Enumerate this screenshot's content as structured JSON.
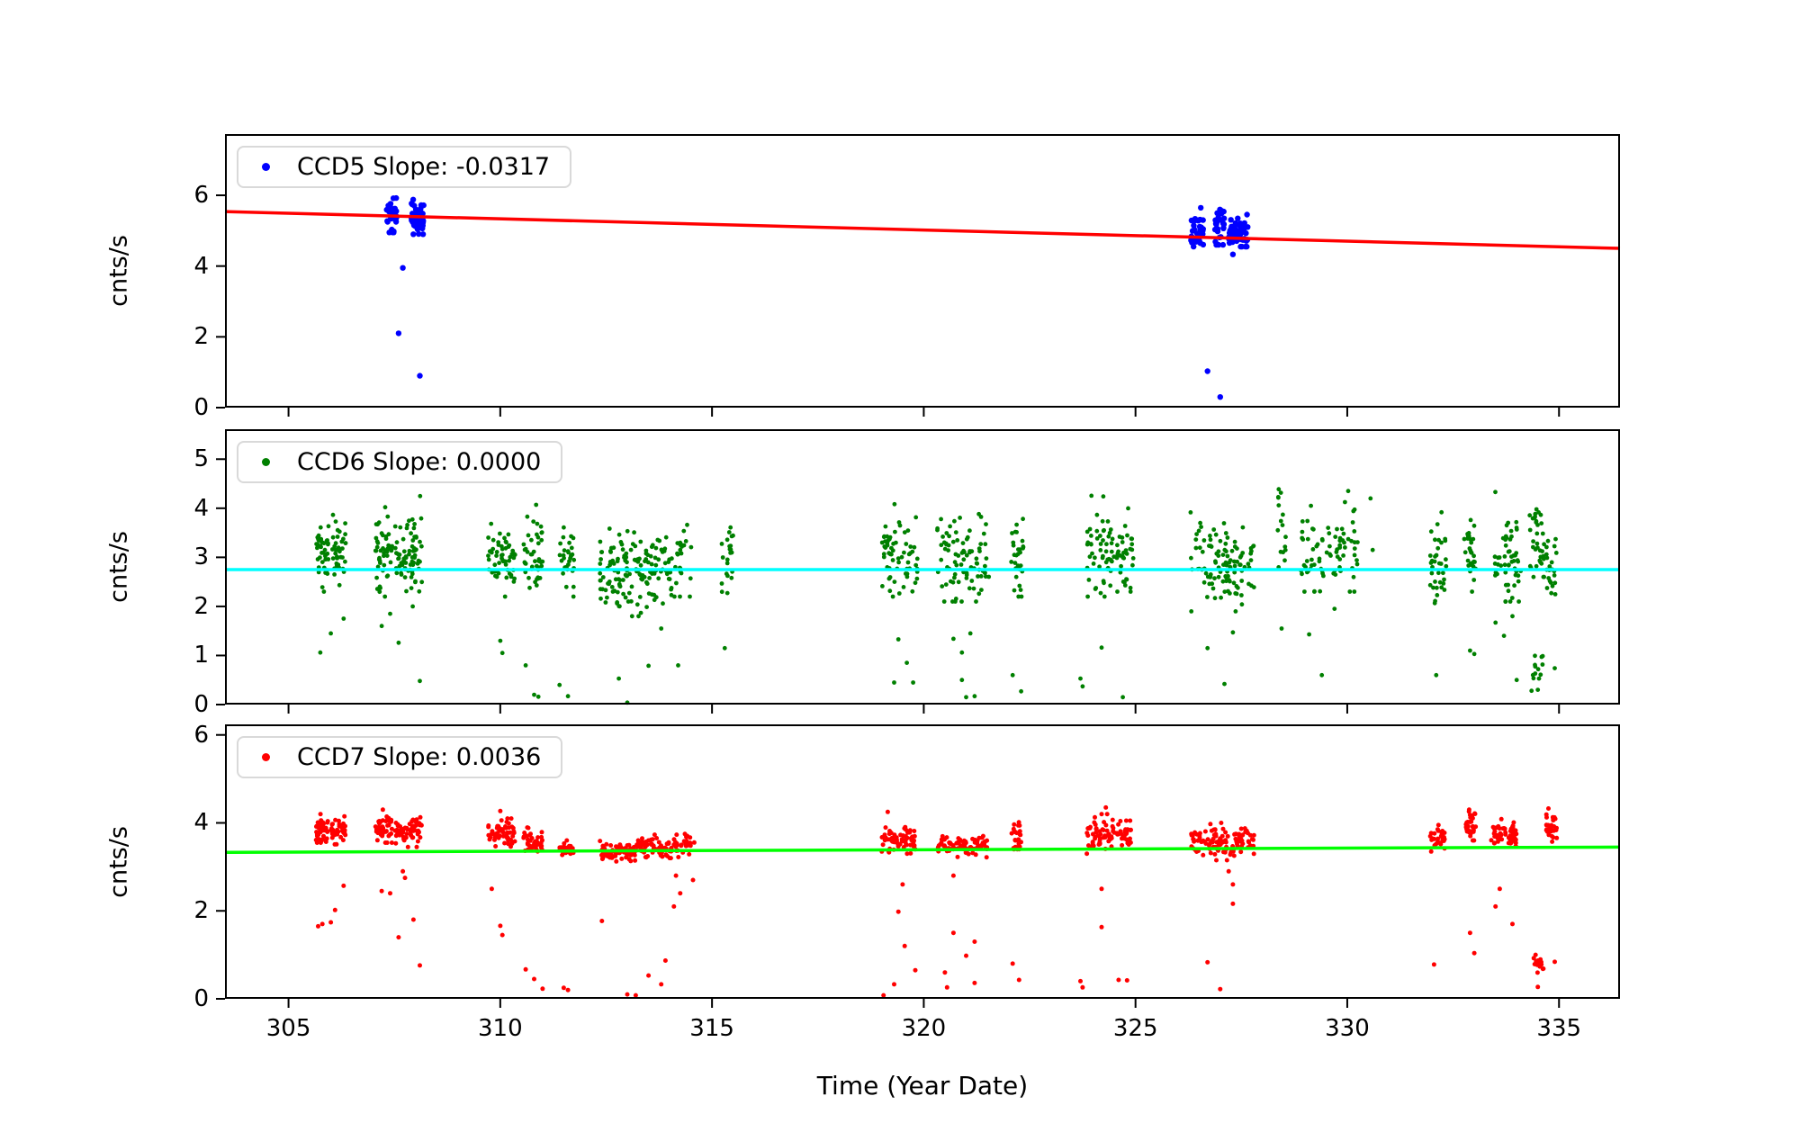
{
  "chart_data": {
    "type": "scatter",
    "xlabel": "Time (Year Date)",
    "ylabel": "cnts/s",
    "xlim": [
      303.5,
      336.44
    ],
    "x_ticks": [
      305,
      310,
      315,
      320,
      325,
      330,
      335
    ],
    "grid": false,
    "legend_position": "upper left",
    "panels": [
      {
        "id": "ccd5",
        "name": "CCD5",
        "legend_label": "CCD5 Slope: -0.0317",
        "slope": -0.0317,
        "marker_color": "#0000ff",
        "line_color": "#ff0000",
        "ylabel": "cnts/s",
        "ylim": [
          0,
          7.73
        ],
        "y_ticks": [
          0,
          2,
          4,
          6
        ],
        "fit_line": {
          "x": [
            303.5,
            336.44
          ],
          "y": [
            5.54,
            4.5
          ]
        },
        "clusters": [
          [
            307.3,
            307.55,
            30,
            5.4,
            0.28,
            4.95,
            6.05
          ],
          [
            307.9,
            308.2,
            40,
            5.35,
            0.3,
            4.9,
            6.2
          ],
          [
            326.3,
            326.6,
            35,
            5.0,
            0.3,
            4.55,
            5.95
          ],
          [
            326.85,
            327.1,
            30,
            5.1,
            0.3,
            4.6,
            5.9
          ],
          [
            327.2,
            327.65,
            55,
            4.9,
            0.2,
            4.55,
            5.9
          ]
        ],
        "outliers": [
          [
            307.7,
            3.95
          ],
          [
            307.6,
            2.1
          ],
          [
            308.1,
            0.9
          ],
          [
            326.7,
            1.03
          ],
          [
            327.0,
            0.3
          ],
          [
            327.3,
            4.33
          ]
        ]
      },
      {
        "id": "ccd6",
        "name": "CCD6",
        "legend_label": "CCD6 Slope: 0.0000",
        "slope": 0.0,
        "marker_color": "#008000",
        "line_color": "#00ffff",
        "ylabel": "cnts/s",
        "ylim": [
          0,
          5.61
        ],
        "y_ticks": [
          0,
          1,
          2,
          3,
          4,
          5
        ],
        "fit_line": {
          "x": [
            303.5,
            336.44
          ],
          "y": [
            2.75,
            2.75
          ]
        },
        "clusters": [
          [
            305.65,
            305.95,
            40,
            3.0,
            0.35,
            2.3,
            4.3
          ],
          [
            306.0,
            306.35,
            40,
            3.1,
            0.35,
            2.3,
            4.0
          ],
          [
            307.05,
            307.45,
            45,
            3.1,
            0.4,
            2.2,
            4.55
          ],
          [
            307.5,
            307.85,
            35,
            2.95,
            0.35,
            2.1,
            3.8
          ],
          [
            307.85,
            308.15,
            40,
            3.0,
            0.45,
            2.0,
            4.65
          ],
          [
            309.7,
            310.35,
            55,
            3.0,
            0.4,
            2.2,
            4.35
          ],
          [
            310.55,
            311.0,
            45,
            3.0,
            0.4,
            2.3,
            4.1
          ],
          [
            311.4,
            311.75,
            30,
            2.9,
            0.35,
            2.2,
            4.1
          ],
          [
            312.35,
            313.15,
            75,
            2.65,
            0.35,
            1.8,
            4.0
          ],
          [
            313.15,
            314.05,
            75,
            2.7,
            0.4,
            1.8,
            4.3
          ],
          [
            314.1,
            314.55,
            25,
            2.9,
            0.45,
            2.2,
            4.1
          ],
          [
            315.2,
            315.5,
            22,
            3.0,
            0.45,
            2.25,
            3.95
          ],
          [
            319.0,
            319.85,
            65,
            3.0,
            0.4,
            2.2,
            4.75
          ],
          [
            320.3,
            321.55,
            85,
            2.95,
            0.45,
            2.1,
            4.55
          ],
          [
            322.05,
            322.35,
            30,
            2.9,
            0.4,
            2.2,
            4.2
          ],
          [
            323.85,
            324.5,
            55,
            3.0,
            0.45,
            2.2,
            4.4
          ],
          [
            324.55,
            324.95,
            35,
            3.0,
            0.4,
            2.3,
            4.3
          ],
          [
            326.3,
            327.8,
            110,
            2.8,
            0.4,
            1.9,
            4.4
          ],
          [
            328.35,
            328.55,
            16,
            3.2,
            0.55,
            2.4,
            4.6
          ],
          [
            328.9,
            329.45,
            35,
            3.1,
            0.45,
            2.3,
            4.05
          ],
          [
            329.5,
            330.25,
            45,
            3.2,
            0.45,
            2.3,
            4.35
          ],
          [
            331.95,
            332.35,
            35,
            2.8,
            0.45,
            1.9,
            3.95
          ],
          [
            332.75,
            333.05,
            30,
            3.1,
            0.5,
            2.3,
            4.5
          ],
          [
            333.45,
            334.1,
            55,
            3.0,
            0.5,
            2.1,
            4.45
          ],
          [
            334.3,
            334.65,
            35,
            3.3,
            0.45,
            2.6,
            4.5
          ],
          [
            334.38,
            334.62,
            12,
            0.8,
            0.15,
            0.5,
            1.1
          ],
          [
            334.7,
            334.95,
            25,
            2.9,
            0.4,
            2.2,
            3.65
          ]
        ],
        "outliers": [
          [
            305.75,
            1.06
          ],
          [
            306.0,
            1.45
          ],
          [
            306.2,
            4.64
          ],
          [
            306.3,
            1.75
          ],
          [
            307.2,
            1.6
          ],
          [
            307.4,
            1.85
          ],
          [
            307.6,
            1.26
          ],
          [
            308.1,
            0.48
          ],
          [
            310.0,
            1.3
          ],
          [
            310.05,
            1.05
          ],
          [
            310.6,
            0.8
          ],
          [
            310.8,
            0.2
          ],
          [
            310.9,
            0.16
          ],
          [
            311.4,
            0.4
          ],
          [
            311.6,
            0.17
          ],
          [
            312.8,
            0.53
          ],
          [
            313.0,
            0.04
          ],
          [
            313.5,
            0.79
          ],
          [
            313.8,
            1.55
          ],
          [
            314.2,
            0.8
          ],
          [
            315.3,
            1.15
          ],
          [
            319.3,
            0.45
          ],
          [
            319.4,
            1.33
          ],
          [
            319.6,
            0.85
          ],
          [
            319.75,
            0.45
          ],
          [
            320.7,
            1.34
          ],
          [
            320.9,
            1.06
          ],
          [
            320.9,
            0.5
          ],
          [
            321.0,
            0.15
          ],
          [
            321.1,
            1.45
          ],
          [
            321.2,
            0.17
          ],
          [
            322.1,
            0.6
          ],
          [
            322.3,
            0.27
          ],
          [
            323.7,
            0.53
          ],
          [
            323.75,
            0.37
          ],
          [
            324.2,
            1.16
          ],
          [
            324.7,
            0.15
          ],
          [
            326.7,
            1.15
          ],
          [
            327.1,
            0.42
          ],
          [
            327.3,
            1.47
          ],
          [
            328.45,
            1.55
          ],
          [
            329.1,
            1.43
          ],
          [
            329.4,
            0.6
          ],
          [
            329.7,
            1.95
          ],
          [
            330.55,
            4.2
          ],
          [
            330.6,
            3.15
          ],
          [
            332.1,
            0.6
          ],
          [
            332.9,
            1.1
          ],
          [
            333.0,
            1.03
          ],
          [
            333.5,
            1.67
          ],
          [
            333.7,
            1.4
          ],
          [
            333.9,
            1.8
          ],
          [
            334.0,
            0.5
          ],
          [
            334.35,
            0.28
          ],
          [
            334.5,
            0.3
          ],
          [
            334.9,
            0.74
          ]
        ]
      },
      {
        "id": "ccd7",
        "name": "CCD7",
        "legend_label": "CCD7 Slope: 0.0036",
        "slope": 0.0036,
        "marker_color": "#ff0000",
        "line_color": "#00ff00",
        "ylabel": "cnts/s",
        "ylim": [
          0,
          6.24
        ],
        "y_ticks": [
          0,
          2,
          4,
          6
        ],
        "fit_line": {
          "x": [
            303.5,
            336.44
          ],
          "y": [
            3.33,
            3.45
          ]
        },
        "clusters": [
          [
            305.65,
            305.95,
            40,
            3.85,
            0.15,
            3.55,
            4.2
          ],
          [
            306.0,
            306.35,
            40,
            3.8,
            0.15,
            3.45,
            4.15
          ],
          [
            307.05,
            307.45,
            45,
            3.9,
            0.18,
            3.55,
            4.3
          ],
          [
            307.5,
            308.15,
            60,
            3.8,
            0.15,
            3.45,
            4.15
          ],
          [
            309.7,
            310.35,
            55,
            3.75,
            0.15,
            3.4,
            4.1
          ],
          [
            310.55,
            311.0,
            40,
            3.6,
            0.13,
            3.35,
            3.95
          ],
          [
            311.4,
            311.75,
            28,
            3.4,
            0.08,
            3.25,
            3.6
          ],
          [
            312.35,
            313.2,
            80,
            3.35,
            0.1,
            3.1,
            3.6
          ],
          [
            313.2,
            314.05,
            72,
            3.45,
            0.12,
            3.2,
            3.8
          ],
          [
            314.1,
            314.6,
            30,
            3.5,
            0.15,
            3.2,
            3.85
          ],
          [
            319.0,
            319.8,
            65,
            3.6,
            0.15,
            3.3,
            4.0
          ],
          [
            320.3,
            321.5,
            85,
            3.5,
            0.12,
            3.2,
            3.85
          ],
          [
            322.05,
            322.3,
            25,
            3.7,
            0.18,
            3.4,
            4.1
          ],
          [
            323.85,
            324.5,
            55,
            3.7,
            0.2,
            3.3,
            4.2
          ],
          [
            324.55,
            324.9,
            30,
            3.75,
            0.15,
            3.45,
            4.05
          ],
          [
            326.3,
            327.8,
            110,
            3.55,
            0.18,
            3.15,
            4.0
          ],
          [
            331.95,
            332.3,
            30,
            3.65,
            0.15,
            3.35,
            3.95
          ],
          [
            332.8,
            333.05,
            30,
            3.95,
            0.18,
            3.6,
            4.3
          ],
          [
            333.4,
            333.75,
            30,
            3.75,
            0.15,
            3.45,
            4.1
          ],
          [
            333.8,
            334.05,
            30,
            3.75,
            0.15,
            3.45,
            4.05
          ],
          [
            334.4,
            334.65,
            14,
            0.78,
            0.12,
            0.55,
            1.0
          ],
          [
            334.7,
            334.95,
            30,
            3.95,
            0.2,
            3.55,
            4.35
          ]
        ],
        "outliers": [
          [
            305.7,
            1.65
          ],
          [
            305.8,
            1.7
          ],
          [
            306.0,
            1.74
          ],
          [
            306.1,
            2.02
          ],
          [
            306.3,
            2.57
          ],
          [
            307.2,
            2.45
          ],
          [
            307.4,
            2.4
          ],
          [
            307.6,
            1.4
          ],
          [
            307.7,
            2.9
          ],
          [
            307.75,
            2.75
          ],
          [
            307.95,
            1.8
          ],
          [
            308.1,
            0.76
          ],
          [
            309.8,
            2.5
          ],
          [
            310.0,
            4.27
          ],
          [
            310.0,
            1.66
          ],
          [
            310.05,
            1.45
          ],
          [
            310.6,
            0.67
          ],
          [
            310.8,
            0.45
          ],
          [
            311.0,
            0.23
          ],
          [
            311.5,
            0.25
          ],
          [
            311.6,
            0.2
          ],
          [
            312.4,
            1.77
          ],
          [
            313.0,
            0.1
          ],
          [
            313.2,
            0.08
          ],
          [
            313.5,
            0.53
          ],
          [
            313.8,
            0.33
          ],
          [
            313.9,
            0.87
          ],
          [
            314.1,
            2.1
          ],
          [
            314.15,
            2.8
          ],
          [
            314.25,
            2.4
          ],
          [
            314.55,
            2.7
          ],
          [
            319.05,
            0.08
          ],
          [
            319.15,
            4.25
          ],
          [
            319.3,
            0.33
          ],
          [
            319.4,
            1.98
          ],
          [
            319.5,
            2.6
          ],
          [
            319.55,
            1.2
          ],
          [
            319.8,
            0.65
          ],
          [
            320.5,
            0.6
          ],
          [
            320.55,
            0.26
          ],
          [
            320.7,
            2.8
          ],
          [
            320.7,
            1.5
          ],
          [
            321.0,
            0.98
          ],
          [
            321.2,
            1.3
          ],
          [
            321.2,
            0.36
          ],
          [
            322.1,
            0.8
          ],
          [
            322.25,
            0.43
          ],
          [
            323.7,
            0.4
          ],
          [
            323.75,
            0.26
          ],
          [
            324.2,
            2.5
          ],
          [
            324.2,
            1.63
          ],
          [
            324.3,
            4.35
          ],
          [
            324.6,
            0.43
          ],
          [
            324.8,
            0.42
          ],
          [
            326.7,
            0.83
          ],
          [
            327.0,
            0.22
          ],
          [
            327.2,
            2.9
          ],
          [
            327.3,
            2.6
          ],
          [
            327.3,
            2.16
          ],
          [
            332.05,
            0.78
          ],
          [
            332.9,
            1.5
          ],
          [
            333.0,
            1.04
          ],
          [
            333.5,
            2.1
          ],
          [
            333.6,
            2.5
          ],
          [
            333.9,
            1.7
          ],
          [
            334.5,
            0.27
          ],
          [
            334.9,
            0.84
          ]
        ]
      }
    ]
  }
}
